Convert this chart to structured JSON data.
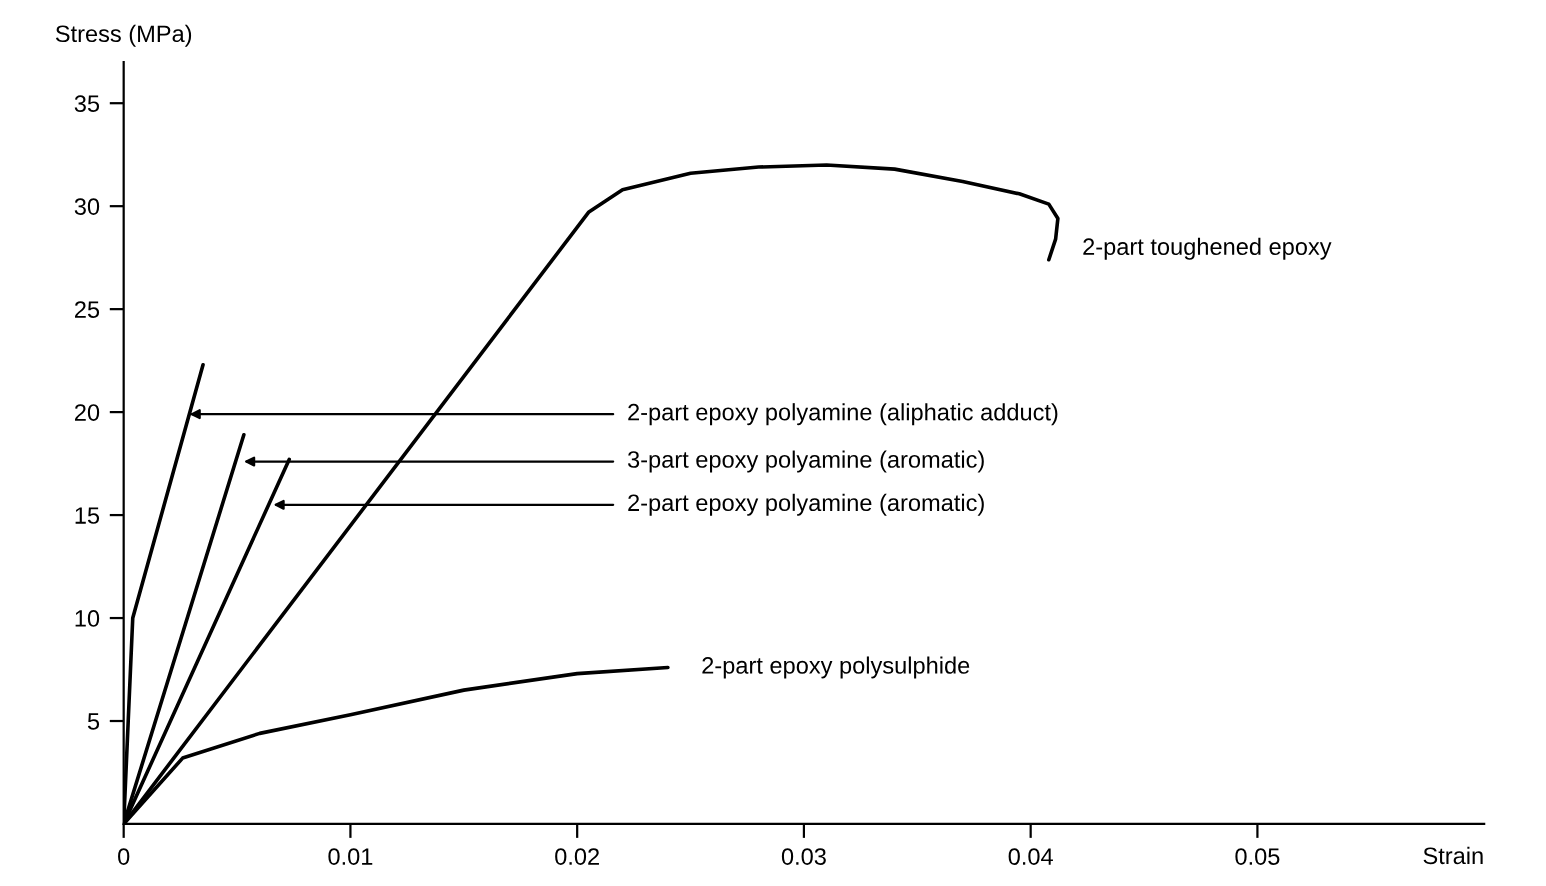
{
  "chart_data": {
    "type": "line",
    "ylabel": "Stress (MPa)",
    "xlabel": "Strain",
    "xlim": [
      0,
      0.06
    ],
    "ylim": [
      0,
      37
    ],
    "xticks": [
      0,
      0.01,
      0.02,
      0.03,
      0.04,
      0.05
    ],
    "yticks": [
      5,
      10,
      15,
      20,
      25,
      30,
      35
    ],
    "grid": false,
    "marker": "none",
    "line_style": "solid",
    "series": [
      {
        "color": "#000000",
        "x": [
          0,
          0.0002,
          0.0004,
          0.0035
        ],
        "values": [
          0,
          5,
          10,
          22.3
        ]
      },
      {
        "color": "#000000",
        "x": [
          0,
          0.0053
        ],
        "values": [
          0,
          18.9
        ]
      },
      {
        "color": "#000000",
        "x": [
          0,
          0.0073
        ],
        "values": [
          0,
          17.7
        ]
      },
      {
        "name": "2-part toughened epoxy",
        "color": "#000000",
        "x": [
          0,
          0.0205,
          0.022,
          0.025,
          0.028,
          0.031,
          0.034,
          0.037,
          0.0395,
          0.0408,
          0.0412,
          0.0411,
          0.0408
        ],
        "values": [
          0,
          29.7,
          30.8,
          31.6,
          31.9,
          32.0,
          31.8,
          31.2,
          30.6,
          30.1,
          29.4,
          28.4,
          27.4
        ]
      },
      {
        "name": "2-part epoxy polysulphide",
        "color": "#000000",
        "x": [
          0,
          0.0026,
          0.006,
          0.01,
          0.015,
          0.02,
          0.024
        ],
        "values": [
          0,
          3.2,
          4.4,
          5.3,
          6.5,
          7.3,
          7.6
        ]
      }
    ],
    "annotations": [
      {
        "text": "2-part epoxy polyamine (aliphatic adduct)",
        "x": 0.0029,
        "y": 19.9
      },
      {
        "text": "3-part epoxy polyamine (aromatic)",
        "x": 0.0053,
        "y": 17.6
      },
      {
        "text": "2-part epoxy polyamine (aromatic)",
        "x": 0.0066,
        "y": 15.5
      }
    ]
  }
}
